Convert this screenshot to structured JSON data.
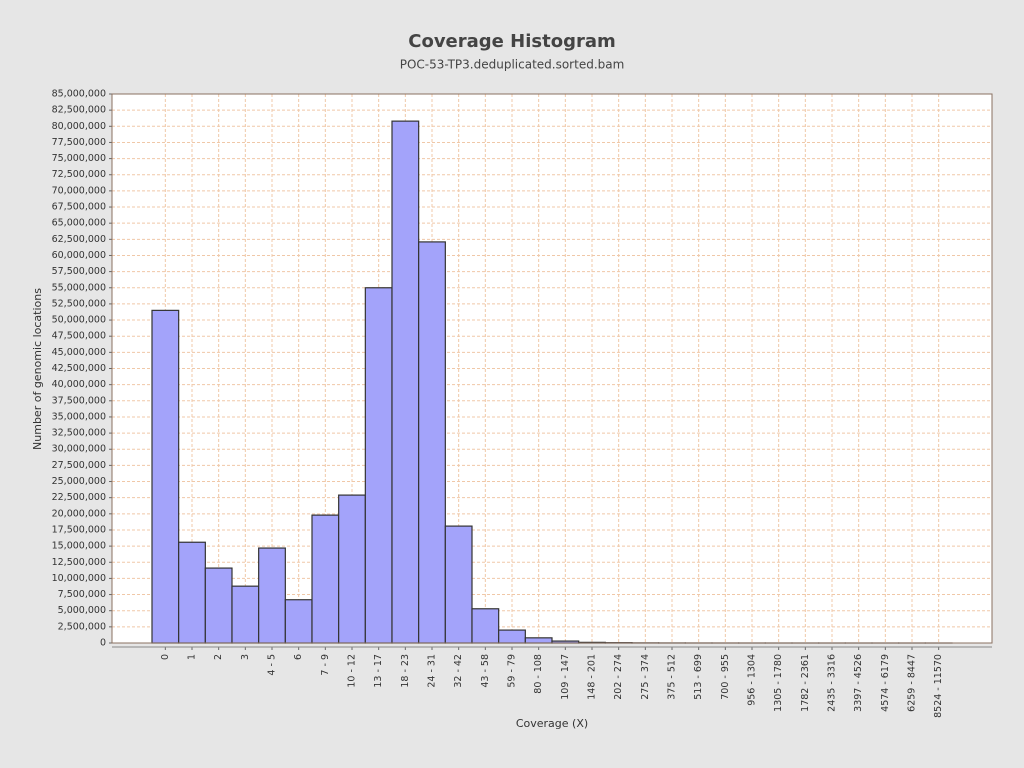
{
  "chart_data": {
    "type": "bar",
    "title": "Coverage Histogram",
    "subtitle": "POC-53-TP3.deduplicated.sorted.bam",
    "x_label": "Coverage (X)",
    "y_label": "Number of genomic locations",
    "categories": [
      "0",
      "1",
      "2",
      "3",
      "4 - 5",
      "6",
      "7 - 9",
      "10 - 12",
      "13 - 17",
      "18 - 23",
      "24 - 31",
      "32 - 42",
      "43 - 58",
      "59 - 79",
      "80 - 108",
      "109 - 147",
      "148 - 201",
      "202 - 274",
      "275 - 374",
      "375 - 512",
      "513 - 699",
      "700 - 955",
      "956 - 1304",
      "1305 - 1780",
      "1782 - 2361",
      "2435 - 3316",
      "3397 - 4526",
      "4574 - 6179",
      "6259 - 8447",
      "8524 - 11570"
    ],
    "values": [
      51500000,
      15600000,
      11600000,
      8800000,
      14700000,
      6700000,
      19800000,
      22900000,
      55000000,
      80800000,
      62100000,
      18100000,
      5300000,
      2000000,
      800000,
      300000,
      100000,
      50000,
      20000,
      10000,
      5000,
      3000,
      2000,
      1000,
      800,
      500,
      300,
      200,
      100,
      50
    ],
    "color": "#a3a3fa",
    "ylim": [
      0,
      85000000
    ],
    "yticks": [
      0,
      {
        "value": 2500000,
        "label": "2,500,000"
      },
      {
        "value": 5000000,
        "label": "5,000,000"
      },
      {
        "value": 7500000,
        "label": "7,500,000"
      },
      {
        "value": 10000000,
        "label": "10,000,000"
      },
      {
        "value": 12500000,
        "label": "12,500,000"
      },
      {
        "value": 15000000,
        "label": "15,000,000"
      },
      {
        "value": 17500000,
        "label": "17,500,000"
      },
      {
        "value": 20000000,
        "label": "20,000,000"
      },
      {
        "value": 22500000,
        "label": "22,500,000"
      },
      {
        "value": 25000000,
        "label": "25,000,000"
      },
      {
        "value": 27500000,
        "label": "27,500,000"
      },
      {
        "value": 30000000,
        "label": "30,000,000"
      },
      {
        "value": 32500000,
        "label": "32,500,000"
      },
      {
        "value": 35000000,
        "label": "35,000,000"
      },
      {
        "value": 37500000,
        "label": "37,500,000"
      },
      {
        "value": 40000000,
        "label": "40,000,000"
      },
      {
        "value": 42500000,
        "label": "42,500,000"
      },
      {
        "value": 45000000,
        "label": "45,000,000"
      },
      {
        "value": 47500000,
        "label": "47,500,000"
      },
      {
        "value": 50000000,
        "label": "50,000,000"
      },
      {
        "value": 52500000,
        "label": "52,500,000"
      },
      {
        "value": 55000000,
        "label": "55,000,000"
      },
      {
        "value": 57500000,
        "label": "57,500,000"
      },
      {
        "value": 60000000,
        "label": "60,000,000"
      },
      {
        "value": 62500000,
        "label": "62,500,000"
      },
      {
        "value": 65000000,
        "label": "65,000,000"
      },
      {
        "value": 67500000,
        "label": "67,500,000"
      },
      {
        "value": 70000000,
        "label": "70,000,000"
      },
      {
        "value": 72500000,
        "label": "72,500,000"
      },
      {
        "value": 75000000,
        "label": "75,000,000"
      },
      {
        "value": 77500000,
        "label": "77,500,000"
      },
      {
        "value": 80000000,
        "label": "80,000,000"
      },
      {
        "value": 82500000,
        "label": "82,500,000"
      },
      {
        "value": 85000000,
        "label": "85,000,000"
      }
    ],
    "grid": true
  }
}
